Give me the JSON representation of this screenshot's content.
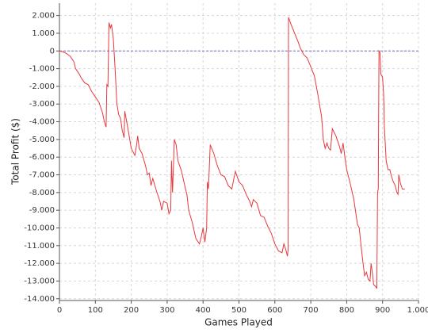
{
  "chart_data": {
    "type": "line",
    "xlabel": "Games Played",
    "ylabel": "Total Profit ($)",
    "color": "#e8383d",
    "grid": true,
    "zero_line_color": "#6e6ec8",
    "xlim": [
      0,
      1000
    ],
    "ylim": [
      -14100,
      2700
    ],
    "xticks": [
      0,
      100,
      200,
      300,
      400,
      500,
      600,
      700,
      800,
      900,
      {
        "value": 1000,
        "label": "1.000"
      }
    ],
    "yticks": [
      {
        "value": 2000,
        "label": "2.000"
      },
      {
        "value": 1000,
        "label": "1.000"
      },
      0,
      {
        "value": -1000,
        "label": "-1.000"
      },
      {
        "value": -2000,
        "label": "-2.000"
      },
      {
        "value": -3000,
        "label": "-3.000"
      },
      {
        "value": -4000,
        "label": "-4.000"
      },
      {
        "value": -5000,
        "label": "-5.000"
      },
      {
        "value": -6000,
        "label": "-6.000"
      },
      {
        "value": -7000,
        "label": "-7.000"
      },
      {
        "value": -8000,
        "label": "-8.000"
      },
      {
        "value": -9000,
        "label": "-9.000"
      },
      {
        "value": -10000,
        "label": "-10.000"
      },
      {
        "value": -11000,
        "label": "-11.000"
      },
      {
        "value": -12000,
        "label": "-12.000"
      },
      {
        "value": -13000,
        "label": "-13.000"
      },
      {
        "value": -14000,
        "label": "-14.000"
      }
    ],
    "x": [
      0,
      10,
      20,
      30,
      40,
      45,
      55,
      60,
      70,
      80,
      90,
      100,
      110,
      120,
      125,
      130,
      132,
      135,
      138,
      142,
      145,
      150,
      155,
      160,
      165,
      170,
      175,
      180,
      182,
      190,
      200,
      210,
      215,
      218,
      222,
      230,
      240,
      245,
      250,
      255,
      260,
      270,
      280,
      285,
      290,
      300,
      305,
      310,
      312,
      315,
      320,
      325,
      330,
      340,
      350,
      355,
      360,
      370,
      380,
      390,
      395,
      400,
      405,
      410,
      412,
      415,
      420,
      430,
      440,
      450,
      460,
      470,
      480,
      490,
      500,
      510,
      520,
      530,
      535,
      540,
      550,
      560,
      570,
      580,
      590,
      600,
      610,
      620,
      625,
      630,
      635,
      637,
      638,
      645,
      655,
      665,
      670,
      680,
      690,
      700,
      710,
      720,
      730,
      735,
      740,
      745,
      750,
      755,
      760,
      770,
      780,
      785,
      790,
      795,
      800,
      810,
      820,
      830,
      835,
      840,
      845,
      850,
      855,
      860,
      865,
      868,
      872,
      875,
      880,
      884,
      886,
      888,
      890,
      893,
      895,
      900,
      903,
      905,
      910,
      915,
      920,
      925,
      930,
      935,
      940,
      943,
      945,
      950,
      955,
      962
    ],
    "values": [
      0,
      -50,
      -150,
      -300,
      -600,
      -1000,
      -1300,
      -1500,
      -1800,
      -1900,
      -2300,
      -2600,
      -2900,
      -3500,
      -4000,
      -4300,
      -1900,
      -2000,
      1600,
      1300,
      1500,
      700,
      -1000,
      -3000,
      -3600,
      -3800,
      -4500,
      -4900,
      -3400,
      -4300,
      -5500,
      -5900,
      -5300,
      -4800,
      -5500,
      -5800,
      -6500,
      -7000,
      -6900,
      -7600,
      -7200,
      -7900,
      -8500,
      -9000,
      -8500,
      -8600,
      -9200,
      -9000,
      -6200,
      -8000,
      -5000,
      -5300,
      -6200,
      -6800,
      -7700,
      -8100,
      -9000,
      -9700,
      -10600,
      -10900,
      -10500,
      -10000,
      -10800,
      -10000,
      -7400,
      -7800,
      -5300,
      -5800,
      -6500,
      -7000,
      -7100,
      -7600,
      -7800,
      -6800,
      -7400,
      -7600,
      -8100,
      -8500,
      -8800,
      -8400,
      -8600,
      -9300,
      -9400,
      -9900,
      -10300,
      -10900,
      -11300,
      -11400,
      -10900,
      -11200,
      -11600,
      -11200,
      1900,
      1500,
      1000,
      500,
      200,
      -200,
      -400,
      -900,
      -1400,
      -2500,
      -3700,
      -5000,
      -5500,
      -5200,
      -5500,
      -5600,
      -4400,
      -4800,
      -5400,
      -5800,
      -5200,
      -6000,
      -6700,
      -7500,
      -8400,
      -9800,
      -10000,
      -11000,
      -11900,
      -12700,
      -12500,
      -12900,
      -13000,
      -12000,
      -12600,
      -13200,
      -13300,
      -13400,
      -8000,
      -7800,
      0,
      -100,
      -1300,
      -1500,
      -2500,
      -4300,
      -6200,
      -6700,
      -6700,
      -7100,
      -7400,
      -7600,
      -8000,
      -8100,
      -7000,
      -7500,
      -7800,
      -7800
    ]
  }
}
